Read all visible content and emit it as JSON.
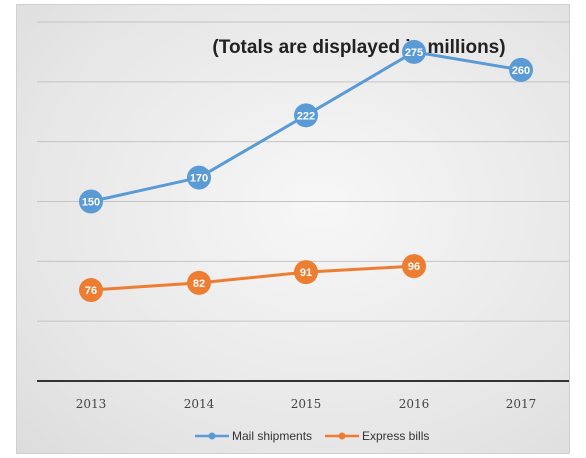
{
  "chart_data": {
    "type": "line",
    "title": "(Totals are displayed in millions)",
    "categories": [
      "2013",
      "2014",
      "2015",
      "2016",
      "2017"
    ],
    "series": [
      {
        "name": "Mail shipments",
        "values": [
          150,
          170,
          222,
          275,
          260
        ],
        "color": "#5b9bd5"
      },
      {
        "name": "Express bills",
        "values": [
          76,
          82,
          91,
          96,
          null
        ],
        "color": "#ed7d31"
      }
    ],
    "ylim": [
      0,
      300
    ],
    "grid": true,
    "legend": "bottom",
    "data_labels": true
  }
}
